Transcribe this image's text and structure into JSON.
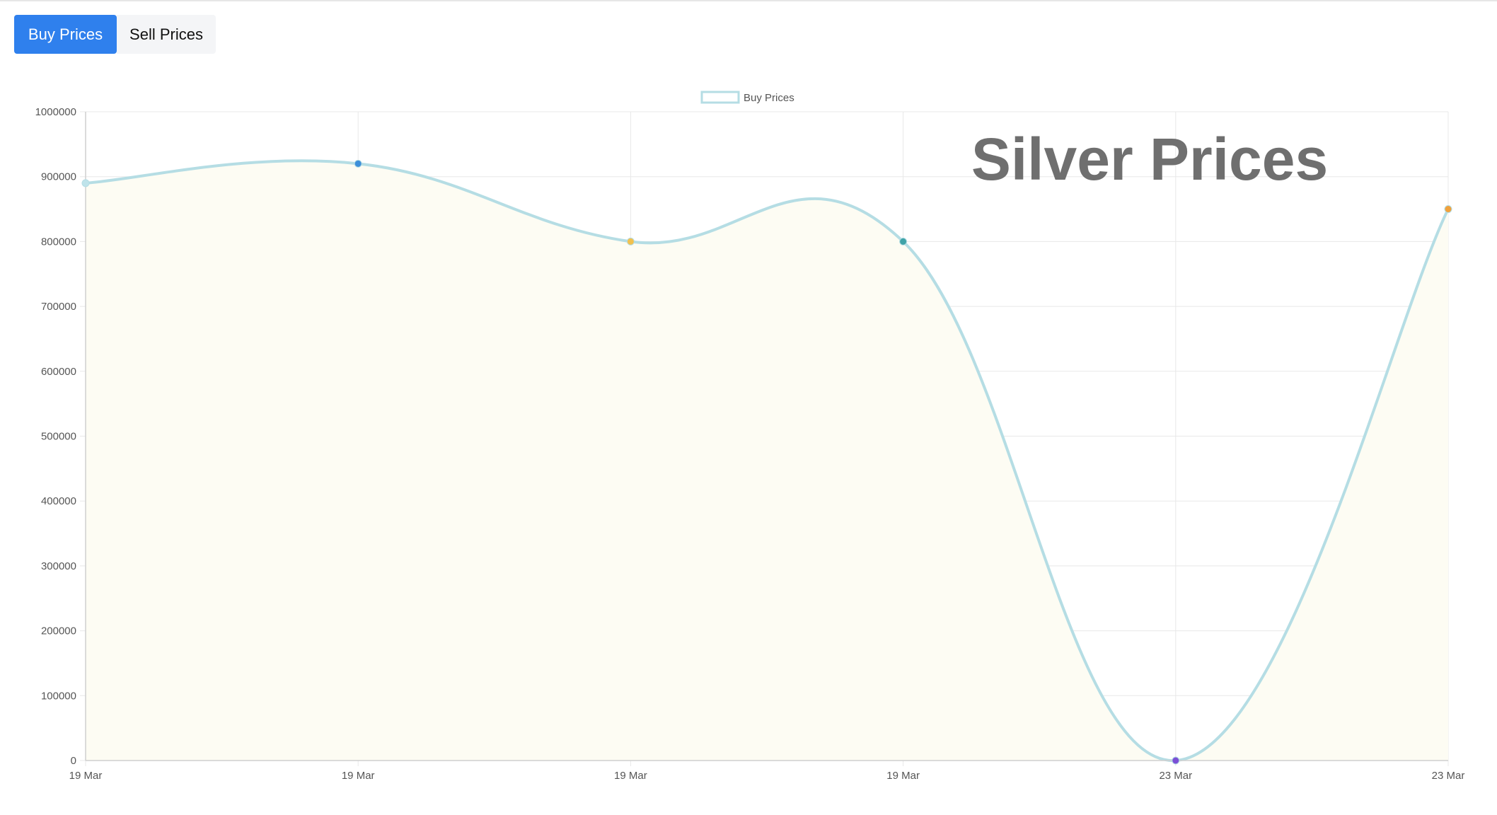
{
  "tabs": {
    "buy_label": "Buy Prices",
    "sell_label": "Sell Prices",
    "active": "buy"
  },
  "colors": {
    "accent": "#2f80ed",
    "line": "#b5dde4",
    "fill": "#fdfcf3",
    "grid": "#e8e8e8",
    "points": [
      "#bfe3ea",
      "#3d8fd9",
      "#f2c14e",
      "#3fa3a8",
      "#7b4fd6",
      "#f0a13c"
    ]
  },
  "chart_data": {
    "type": "area",
    "title": "Silver Prices",
    "legend": {
      "position": "top-center",
      "entries": [
        "Buy Prices"
      ]
    },
    "x": [
      "19 Mar",
      "19 Mar",
      "19 Mar",
      "19 Mar",
      "23 Mar",
      "23 Mar"
    ],
    "series": [
      {
        "name": "Buy Prices",
        "values": [
          890000,
          920000,
          800000,
          800000,
          0,
          850000
        ]
      }
    ],
    "ylim": [
      0,
      1000000
    ],
    "yticks": [
      0,
      100000,
      200000,
      300000,
      400000,
      500000,
      600000,
      700000,
      800000,
      900000,
      1000000
    ],
    "grid": true
  }
}
